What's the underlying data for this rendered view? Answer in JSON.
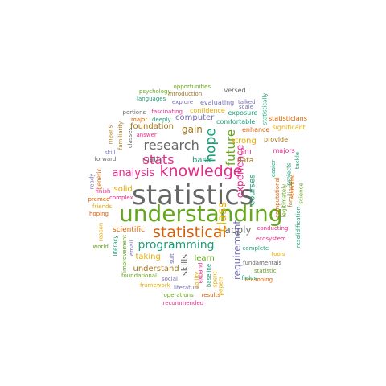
{
  "palette": {
    "gray": "#666666",
    "green": "#66A61E",
    "orange": "#D95F02",
    "teal": "#1B9E77",
    "pink": "#E7298A",
    "purple": "#7570B3",
    "gold": "#E6AB02",
    "brown": "#A6761D"
  },
  "words": [
    {
      "text": "statistics",
      "color": "gray"
    },
    {
      "text": "understanding",
      "color": "green"
    },
    {
      "text": "statistical",
      "color": "orange"
    },
    {
      "text": "knowledge",
      "color": "pink"
    },
    {
      "text": "research",
      "color": "gray"
    },
    {
      "text": "stats",
      "color": "pink"
    },
    {
      "text": "analysis",
      "color": "pink"
    },
    {
      "text": "programming",
      "color": "teal"
    },
    {
      "text": "hope",
      "color": "teal"
    },
    {
      "text": "future",
      "color": "green"
    },
    {
      "text": "class",
      "color": "gold"
    },
    {
      "text": "requirement",
      "color": "purple"
    },
    {
      "text": "experience",
      "color": "pink"
    },
    {
      "text": "apply",
      "color": "gray"
    },
    {
      "text": "skills",
      "color": "gray"
    },
    {
      "text": "gain",
      "color": "brown"
    },
    {
      "text": "basic",
      "color": "teal"
    },
    {
      "text": "strong",
      "color": "gold"
    },
    {
      "text": "courses",
      "color": "teal"
    },
    {
      "text": "computer",
      "color": "purple"
    },
    {
      "text": "foundation",
      "color": "brown"
    },
    {
      "text": "solid",
      "color": "gold"
    },
    {
      "text": "scientific",
      "color": "orange"
    },
    {
      "text": "taking",
      "color": "gold"
    },
    {
      "text": "learn",
      "color": "green"
    },
    {
      "text": "understand",
      "color": "brown"
    },
    {
      "text": "math",
      "color": "gray"
    },
    {
      "text": "data",
      "color": "brown"
    },
    {
      "text": "i'm",
      "color": "pink"
    },
    {
      "text": "enhance",
      "color": "orange"
    },
    {
      "text": "significant",
      "color": "gold"
    },
    {
      "text": "majors",
      "color": "pink"
    },
    {
      "text": "provide",
      "color": "brown"
    },
    {
      "text": "statisticians",
      "color": "orange"
    },
    {
      "text": "exposure",
      "color": "teal"
    },
    {
      "text": "comfortable",
      "color": "teal"
    },
    {
      "text": "statistically",
      "color": "teal"
    },
    {
      "text": "talked",
      "color": "purple"
    },
    {
      "text": "scale",
      "color": "purple"
    },
    {
      "text": "versed",
      "color": "gray"
    },
    {
      "text": "evaluating",
      "color": "purple"
    },
    {
      "text": "confidence",
      "color": "gold"
    },
    {
      "text": "fascinating",
      "color": "pink"
    },
    {
      "text": "explore",
      "color": "purple"
    },
    {
      "text": "introduction",
      "color": "brown"
    },
    {
      "text": "opportunities",
      "color": "green"
    },
    {
      "text": "psychology",
      "color": "green"
    },
    {
      "text": "languages",
      "color": "teal"
    },
    {
      "text": "portions",
      "color": "gray"
    },
    {
      "text": "major",
      "color": "orange"
    },
    {
      "text": "deeply",
      "color": "teal"
    },
    {
      "text": "answer",
      "color": "pink"
    },
    {
      "text": "means",
      "color": "brown"
    },
    {
      "text": "familiarity",
      "color": "brown"
    },
    {
      "text": "classes",
      "color": "gray"
    },
    {
      "text": "skill",
      "color": "purple"
    },
    {
      "text": "forward",
      "color": "gray"
    },
    {
      "text": "generic",
      "color": "orange"
    },
    {
      "text": "ready",
      "color": "purple"
    },
    {
      "text": "finish",
      "color": "pink"
    },
    {
      "text": "premed",
      "color": "orange"
    },
    {
      "text": "complex",
      "color": "pink"
    },
    {
      "text": "friends",
      "color": "gold"
    },
    {
      "text": "hoping",
      "color": "orange"
    },
    {
      "text": "reason",
      "color": "gold"
    },
    {
      "text": "world",
      "color": "green"
    },
    {
      "text": "literacy",
      "color": "teal"
    },
    {
      "text": "improvement",
      "color": "green"
    },
    {
      "text": "email",
      "color": "purple"
    },
    {
      "text": "foundational",
      "color": "green"
    },
    {
      "text": "social",
      "color": "purple"
    },
    {
      "text": "framework",
      "color": "gold"
    },
    {
      "text": "literature",
      "color": "purple"
    },
    {
      "text": "operations",
      "color": "green"
    },
    {
      "text": "recommended",
      "color": "pink"
    },
    {
      "text": "results",
      "color": "orange"
    },
    {
      "text": "suit",
      "color": "purple"
    },
    {
      "text": "expand",
      "color": "pink"
    },
    {
      "text": "ability",
      "color": "gold"
    },
    {
      "text": "baseline",
      "color": "teal"
    },
    {
      "text": "spent",
      "color": "gold"
    },
    {
      "text": "papers",
      "color": "gold"
    },
    {
      "text": "reasoning",
      "color": "orange"
    },
    {
      "text": "statistic",
      "color": "green"
    },
    {
      "text": "fields",
      "color": "teal"
    },
    {
      "text": "tools",
      "color": "gold"
    },
    {
      "text": "fundamentals",
      "color": "gray"
    },
    {
      "text": "complete",
      "color": "teal"
    },
    {
      "text": "ecosystem",
      "color": "pink"
    },
    {
      "text": "conducting",
      "color": "pink"
    },
    {
      "text": "computational",
      "color": "orange"
    },
    {
      "text": "legitimately",
      "color": "green"
    },
    {
      "text": "familiarize",
      "color": "brown"
    },
    {
      "text": "essential",
      "color": "orange"
    },
    {
      "text": "easier",
      "color": "teal"
    },
    {
      "text": "projects",
      "color": "teal"
    },
    {
      "text": "tackle",
      "color": "teal"
    },
    {
      "text": "science",
      "color": "green"
    },
    {
      "text": "resolidification",
      "color": "teal"
    }
  ]
}
